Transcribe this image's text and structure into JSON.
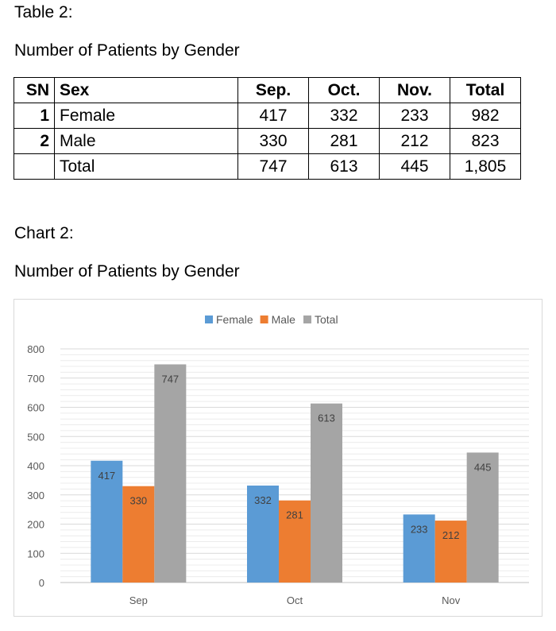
{
  "table_label": "Table 2:",
  "table_title": "Number of Patients by Gender",
  "table": {
    "headers": [
      "SN",
      "Sex",
      "Sep.",
      "Oct.",
      "Nov.",
      "Total"
    ],
    "rows": [
      [
        "1",
        "Female",
        "417",
        "332",
        "233",
        "982"
      ],
      [
        "2",
        "Male",
        "330",
        "281",
        "212",
        "823"
      ],
      [
        "",
        "Total",
        "747",
        "613",
        "445",
        "1,805"
      ]
    ]
  },
  "chart_label": "Chart 2:",
  "chart_title": "Number of Patients by Gender",
  "chart_data": {
    "type": "bar",
    "categories": [
      "Sep",
      "Oct",
      "Nov"
    ],
    "series": [
      {
        "name": "Female",
        "values": [
          417,
          332,
          233
        ],
        "color": "#5b9bd5"
      },
      {
        "name": "Male",
        "values": [
          330,
          281,
          212
        ],
        "color": "#ed7d31"
      },
      {
        "name": "Total",
        "values": [
          747,
          613,
          445
        ],
        "color": "#a5a5a5"
      }
    ],
    "ylim": [
      0,
      800
    ],
    "yticks": [
      0,
      100,
      200,
      300,
      400,
      500,
      600,
      700,
      800
    ],
    "grid": true,
    "legend_position": "top-center",
    "data_labels": true
  }
}
